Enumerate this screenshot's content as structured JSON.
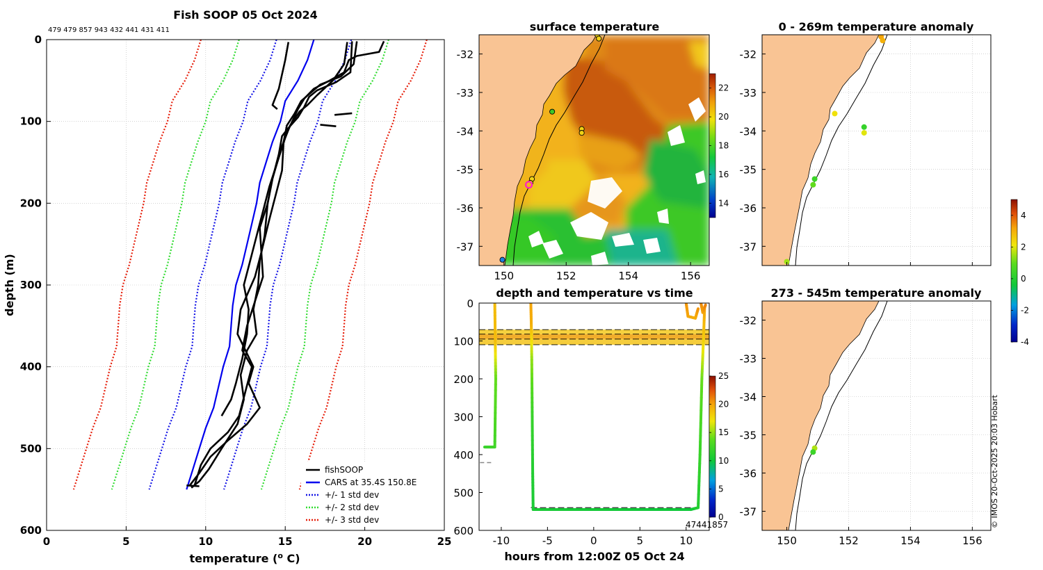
{
  "colors": {
    "soop": "#000000",
    "cars": "#0000ee",
    "std1": "#1414e6",
    "std2": "#32dc32",
    "std3": "#e61e0a",
    "land": "#f9c494",
    "grid": "#b8b8b8",
    "marker_ring": "#ff1ec8"
  },
  "credit": "© IMOS 20-Oct-2025 20:03 Hobart",
  "chart_data": [
    {
      "id": "profile",
      "type": "line",
      "title": "Fish SOOP 05 Oct 2024",
      "subtitle": "479 479 857 943 432 441 431 411",
      "xlabel": "temperature (",
      "xlabel_unit": "o",
      "xlabel_tail": " C)",
      "ylabel": "depth (m)",
      "xlim": [
        0,
        25
      ],
      "ylim": [
        600,
        0
      ],
      "xticks": [
        "0",
        "5",
        "10",
        "15",
        "20",
        "25"
      ],
      "yticks": [
        "0",
        "100",
        "200",
        "300",
        "400",
        "500",
        "600"
      ],
      "grid": true,
      "legend_position": "bottom-right",
      "legend": [
        "fishSOOP",
        "CARS at 35.4S 150.8E",
        "+/- 1 std dev",
        "+/- 2 std dev",
        "+/- 3 std dev"
      ],
      "cars_mean": [
        [
          16.8,
          0
        ],
        [
          16.4,
          25
        ],
        [
          15.8,
          50
        ],
        [
          15.0,
          75
        ],
        [
          14.7,
          100
        ],
        [
          14.2,
          125
        ],
        [
          13.8,
          150
        ],
        [
          13.4,
          175
        ],
        [
          13.2,
          200
        ],
        [
          12.9,
          225
        ],
        [
          12.6,
          250
        ],
        [
          12.3,
          275
        ],
        [
          11.9,
          300
        ],
        [
          11.7,
          325
        ],
        [
          11.6,
          350
        ],
        [
          11.5,
          375
        ],
        [
          11.1,
          400
        ],
        [
          10.8,
          425
        ],
        [
          10.5,
          450
        ],
        [
          10.0,
          475
        ],
        [
          9.6,
          500
        ],
        [
          9.2,
          525
        ],
        [
          8.8,
          550
        ]
      ],
      "std": [
        2.35,
        4.7,
        7.1
      ],
      "soop_profiles": [
        [
          [
            15.2,
            3
          ],
          [
            15.0,
            25
          ],
          [
            14.6,
            60
          ],
          [
            14.2,
            80
          ],
          [
            14.5,
            85
          ]
        ],
        [
          [
            19.2,
            2
          ],
          [
            19.1,
            40
          ],
          [
            18.2,
            52
          ],
          [
            17.0,
            62
          ],
          [
            16.5,
            70
          ],
          [
            16.2,
            82
          ],
          [
            15.8,
            95
          ],
          [
            15.2,
            108
          ],
          [
            14.8,
            118
          ],
          [
            14.6,
            140
          ],
          [
            14.2,
            170
          ],
          [
            13.9,
            200
          ],
          [
            13.7,
            240
          ],
          [
            13.4,
            270
          ],
          [
            13.3,
            300
          ],
          [
            13.0,
            330
          ],
          [
            13.2,
            360
          ],
          [
            12.6,
            380
          ],
          [
            12.2,
            410
          ],
          [
            12.4,
            440
          ],
          [
            12.0,
            470
          ],
          [
            11.0,
            500
          ],
          [
            10.2,
            525
          ],
          [
            9.6,
            540
          ],
          [
            9.1,
            548
          ]
        ],
        [
          [
            19.5,
            2
          ],
          [
            19.3,
            30
          ],
          [
            18.5,
            45
          ],
          [
            17.2,
            55
          ],
          [
            16.6,
            65
          ],
          [
            16.0,
            75
          ],
          [
            15.6,
            90
          ],
          [
            15.1,
            105
          ],
          [
            14.9,
            125
          ],
          [
            14.8,
            160
          ],
          [
            14.4,
            190
          ],
          [
            14.0,
            220
          ],
          [
            13.5,
            260
          ],
          [
            13.1,
            290
          ],
          [
            12.2,
            330
          ],
          [
            12.0,
            360
          ],
          [
            12.5,
            380
          ],
          [
            13.0,
            400
          ],
          [
            12.7,
            420
          ],
          [
            13.4,
            450
          ],
          [
            12.6,
            470
          ],
          [
            11.4,
            490
          ],
          [
            10.3,
            510
          ],
          [
            9.6,
            530
          ],
          [
            9.0,
            545
          ]
        ],
        [
          [
            21.2,
            2
          ],
          [
            20.9,
            15
          ],
          [
            19.5,
            20
          ],
          [
            19.0,
            25
          ],
          [
            18.7,
            40
          ],
          [
            17.8,
            50
          ],
          [
            16.8,
            60
          ],
          [
            16.2,
            72
          ],
          [
            15.8,
            85
          ],
          [
            15.2,
            110
          ],
          [
            14.8,
            130
          ],
          [
            14.2,
            170
          ],
          [
            13.9,
            200
          ],
          [
            13.4,
            230
          ],
          [
            13.5,
            260
          ],
          [
            13.6,
            290
          ],
          [
            13.1,
            320
          ],
          [
            12.6,
            350
          ],
          [
            12.3,
            380
          ],
          [
            12.9,
            400
          ],
          [
            12.5,
            430
          ],
          [
            12.1,
            460
          ],
          [
            11.4,
            480
          ],
          [
            10.3,
            500
          ],
          [
            9.7,
            520
          ],
          [
            9.3,
            545
          ]
        ],
        [
          [
            18.9,
            3
          ],
          [
            18.7,
            30
          ],
          [
            18.0,
            50
          ],
          [
            17.0,
            68
          ],
          [
            16.4,
            80
          ],
          [
            15.9,
            88
          ],
          [
            15.3,
            105
          ],
          [
            15.0,
            120
          ],
          [
            14.5,
            150
          ],
          [
            14.0,
            180
          ],
          [
            13.6,
            210
          ],
          [
            13.2,
            240
          ],
          [
            12.8,
            270
          ],
          [
            12.4,
            300
          ],
          [
            12.7,
            330
          ],
          [
            12.6,
            360
          ],
          [
            12.3,
            390
          ],
          [
            11.9,
            420
          ],
          [
            11.6,
            440
          ],
          [
            11.0,
            460
          ]
        ],
        [
          [
            18.1,
            92
          ],
          [
            19.2,
            90
          ]
        ],
        [
          [
            17.2,
            104
          ],
          [
            18.2,
            106
          ]
        ],
        [
          [
            8.8,
            545
          ],
          [
            9.6,
            546
          ]
        ]
      ]
    },
    {
      "id": "sst",
      "type": "heatmap",
      "title": "surface temperature",
      "xlim": [
        149.2,
        156.6
      ],
      "ylim": [
        -37.5,
        -31.5
      ],
      "xticks": [
        "150",
        "152",
        "154",
        "156"
      ],
      "yticks": [
        "-32",
        "-33",
        "-34",
        "-35",
        "-36",
        "-37"
      ],
      "colorbar": {
        "range": [
          13,
          23
        ],
        "ticks": [
          "22",
          "20",
          "18",
          "16",
          "14"
        ]
      },
      "stations": [
        [
          153.0,
          -31.5
        ],
        [
          153.05,
          -31.6
        ],
        [
          151.55,
          -33.5
        ],
        [
          152.5,
          -33.95
        ],
        [
          152.5,
          -34.05
        ],
        [
          150.9,
          -35.25
        ],
        [
          150.85,
          -35.35
        ],
        [
          150.8,
          -35.4
        ],
        [
          149.95,
          -37.35
        ]
      ]
    },
    {
      "id": "anom1",
      "type": "scatter",
      "title": "0 - 269m temperature anomaly",
      "xlim": [
        149.2,
        156.6
      ],
      "ylim": [
        -37.5,
        -31.5
      ],
      "xticks": [
        "150",
        "152",
        "154",
        "156"
      ],
      "yticks": [
        "-32",
        "-33",
        "-34",
        "-35",
        "-36",
        "-37"
      ],
      "colorbar": {
        "range": [
          -4,
          5
        ],
        "ticks": [
          "4",
          "2",
          "0",
          "-2",
          "-4"
        ]
      },
      "points": [
        [
          153.05,
          -31.55,
          3.2
        ],
        [
          153.1,
          -31.65,
          3.0
        ],
        [
          151.55,
          -33.55,
          2.2
        ],
        [
          152.5,
          -33.9,
          0.3
        ],
        [
          152.5,
          -34.05,
          2.0
        ],
        [
          150.9,
          -35.25,
          0.4
        ],
        [
          150.85,
          -35.4,
          1.0
        ],
        [
          150.0,
          -37.4,
          1.5
        ]
      ]
    },
    {
      "id": "timeline",
      "type": "line",
      "title": "depth and temperature vs time",
      "xlabel": "hours from 12:00Z 05 Oct 24",
      "xlim": [
        -12.4,
        12.5
      ],
      "ylim": [
        600,
        0
      ],
      "xticks": [
        "-10",
        "-5",
        "0",
        "5",
        "10"
      ],
      "yticks": [
        "0",
        "100",
        "200",
        "300",
        "400",
        "500",
        "600"
      ],
      "colorbar": {
        "range": [
          0,
          25
        ],
        "ticks": [
          "25",
          "20",
          "15",
          "10",
          "5",
          "0"
        ]
      },
      "bands": [
        [
          70,
          82
        ],
        [
          82,
          95
        ],
        [
          95,
          110
        ]
      ],
      "tracks": [
        [
          [
            -10.7,
            0,
            19
          ],
          [
            -10.65,
            100,
            19
          ],
          [
            -10.6,
            200,
            14
          ],
          [
            -10.7,
            380,
            12.5
          ],
          [
            -11.8,
            380,
            12
          ]
        ],
        [
          [
            -6.8,
            0,
            20
          ],
          [
            -6.75,
            60,
            19.5
          ],
          [
            -6.7,
            150,
            15
          ],
          [
            -6.65,
            300,
            12
          ],
          [
            -6.6,
            450,
            11
          ],
          [
            -6.55,
            545,
            10.5
          ],
          [
            7.0,
            545,
            10
          ],
          [
            10.5,
            545,
            10
          ],
          [
            11.3,
            540,
            11
          ],
          [
            11.5,
            400,
            12
          ],
          [
            11.7,
            200,
            14
          ],
          [
            11.9,
            80,
            18.5
          ],
          [
            12.0,
            10,
            20
          ]
        ]
      ],
      "short_tracks": [
        [
          [
            10.0,
            0,
            20.5
          ],
          [
            10.2,
            35,
            20
          ],
          [
            11.0,
            40,
            19.5
          ],
          [
            11.3,
            15,
            20.5
          ]
        ],
        [
          [
            11.6,
            0,
            21
          ],
          [
            11.8,
            25,
            20
          ],
          [
            12.1,
            5,
            21
          ]
        ]
      ],
      "ref_depths": [
        421,
        540
      ],
      "time_labels": [
        "474",
        "4",
        "1857"
      ]
    },
    {
      "id": "anom2",
      "type": "scatter",
      "title": "273 - 545m temperature anomaly",
      "xlim": [
        149.2,
        156.6
      ],
      "ylim": [
        -37.5,
        -31.5
      ],
      "xticks": [
        "150",
        "152",
        "154",
        "156"
      ],
      "yticks": [
        "-32",
        "-33",
        "-34",
        "-35",
        "-36",
        "-37"
      ],
      "points": [
        [
          150.9,
          -35.35,
          1.6
        ],
        [
          150.85,
          -35.45,
          0.4
        ]
      ]
    }
  ]
}
